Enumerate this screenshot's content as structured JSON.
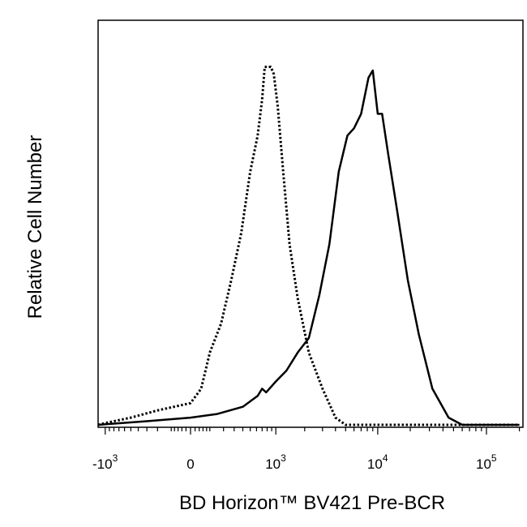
{
  "chart_data": {
    "type": "line",
    "title": "",
    "xlabel": "BD Horizon™ BV421 Pre-BCR",
    "ylabel": "Relative Cell Number",
    "x_scale": "biexponential (logicle)",
    "x_ticks": [
      {
        "value": -1000,
        "base": "-10",
        "exp": "3"
      },
      {
        "value": 0,
        "base": "0",
        "exp": ""
      },
      {
        "value": 1000,
        "base": "10",
        "exp": "3"
      },
      {
        "value": 10000,
        "base": "10",
        "exp": "4"
      },
      {
        "value": 100000,
        "base": "10",
        "exp": "5"
      }
    ],
    "ylim": [
      0,
      1
    ],
    "grid": false,
    "legend": "none",
    "series": [
      {
        "style": "dotted",
        "color": "#000000",
        "points": [
          [
            -1800,
            0.0
          ],
          [
            -1000,
            0.005
          ],
          [
            -500,
            0.02
          ],
          [
            -200,
            0.04
          ],
          [
            0,
            0.06
          ],
          [
            50,
            0.1
          ],
          [
            100,
            0.2
          ],
          [
            180,
            0.28
          ],
          [
            270,
            0.4
          ],
          [
            380,
            0.53
          ],
          [
            500,
            0.7
          ],
          [
            620,
            0.8
          ],
          [
            700,
            0.9
          ],
          [
            750,
            0.99
          ],
          [
            820,
            0.99
          ],
          [
            880,
            0.99
          ],
          [
            950,
            0.97
          ],
          [
            1050,
            0.88
          ],
          [
            1200,
            0.7
          ],
          [
            1400,
            0.5
          ],
          [
            1700,
            0.35
          ],
          [
            2200,
            0.2
          ],
          [
            3000,
            0.1
          ],
          [
            4000,
            0.02
          ],
          [
            5000,
            0.0
          ],
          [
            200000,
            0.0
          ]
        ]
      },
      {
        "style": "solid",
        "color": "#000000",
        "points": [
          [
            -1800,
            0.0
          ],
          [
            -300,
            0.01
          ],
          [
            0,
            0.02
          ],
          [
            150,
            0.03
          ],
          [
            400,
            0.05
          ],
          [
            620,
            0.08
          ],
          [
            700,
            0.1
          ],
          [
            780,
            0.09
          ],
          [
            1000,
            0.12
          ],
          [
            1300,
            0.15
          ],
          [
            1700,
            0.2
          ],
          [
            2200,
            0.24
          ],
          [
            2800,
            0.36
          ],
          [
            3500,
            0.5
          ],
          [
            4300,
            0.7
          ],
          [
            5200,
            0.8
          ],
          [
            6000,
            0.82
          ],
          [
            7000,
            0.86
          ],
          [
            8200,
            0.96
          ],
          [
            9000,
            0.98
          ],
          [
            10000,
            0.86
          ],
          [
            11000,
            0.86
          ],
          [
            12500,
            0.75
          ],
          [
            15000,
            0.6
          ],
          [
            19000,
            0.4
          ],
          [
            24000,
            0.25
          ],
          [
            32000,
            0.1
          ],
          [
            45000,
            0.02
          ],
          [
            60000,
            0.0
          ],
          [
            200000,
            0.0
          ]
        ]
      }
    ]
  }
}
